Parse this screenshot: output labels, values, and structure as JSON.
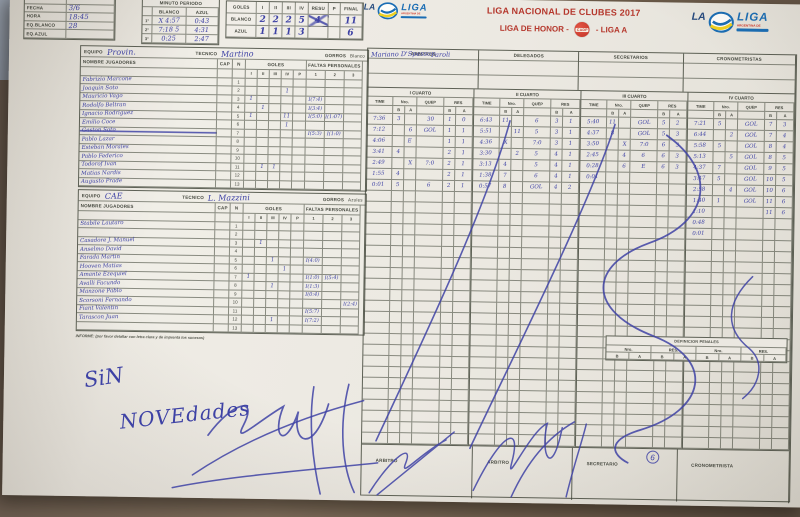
{
  "colors": {
    "title_red": "#b5372c",
    "ink_blue": "#3e42a5",
    "logo_blue": "#1a6db4",
    "logo_yellow": "#eed020",
    "paper": "#ebe8e1"
  },
  "logo": {
    "la": "LA",
    "liga": "LIGA",
    "tagline": "ARGENTINA DE"
  },
  "title": {
    "line1": "LIGA NACIONAL DE CLUBES 2017",
    "line2_left": "LIGA DE HONOR -",
    "line2_right": "- LIGA A",
    "badge": "CADP"
  },
  "info_table": {
    "rows": [
      {
        "label": "",
        "value": ""
      },
      {
        "label": "FECHA",
        "value": "3/6"
      },
      {
        "label": "HORA",
        "value": "18:45"
      },
      {
        "label": "EQ.BLANCO",
        "value": "28"
      },
      {
        "label": "EQ.AZUL",
        "value": ""
      }
    ]
  },
  "minuto_periodo": {
    "title": "MINUTO PERIODO",
    "col_blanco": "BLANCO",
    "col_azul": "AZUL",
    "rows": [
      {
        "n": "1°",
        "blanco": "X 4:57",
        "azul": "0:43"
      },
      {
        "n": "2°",
        "blanco": "7:18 5",
        "azul": "4:31"
      },
      {
        "n": "3°",
        "blanco": "0:25",
        "azul": "2:47"
      }
    ]
  },
  "goles_resumen": {
    "title": "GOLES",
    "cols": [
      "I",
      "II",
      "III",
      "IV",
      "RESU",
      "P",
      "FINAL"
    ],
    "rows": [
      {
        "label": "BLANCO",
        "vals": [
          "2",
          "2",
          "2",
          "5",
          "4",
          "",
          "11"
        ],
        "strike_col": 4
      },
      {
        "label": "AZUL",
        "vals": [
          "1",
          "1",
          "1",
          "3",
          "",
          "",
          "6"
        ],
        "strike_col": -1
      }
    ]
  },
  "team_labels": {
    "equipo": "EQUIPO",
    "tecnico": "TECNICO",
    "gorros": "GORROS",
    "nombre": "NOMBRE JUGADORES",
    "cap": "CAP",
    "n": "N",
    "goles": "GOLES",
    "goles_cols": [
      "I",
      "II",
      "III",
      "IV",
      "P"
    ],
    "faltas": "FALTAS PERSONALES",
    "faltas_cols": [
      "1",
      "2",
      "3"
    ]
  },
  "teams": [
    {
      "equipo": "Provin.",
      "tecnico": "Martino",
      "gorros": "Blanco",
      "players": [
        {
          "n": "1",
          "name": "Fabrizio Marcone",
          "goles": [
            "",
            "",
            "",
            "",
            ""
          ],
          "faltas": [
            "",
            "",
            ""
          ],
          "struck": false
        },
        {
          "n": "2",
          "name": "Joaquin Soto",
          "goles": [
            "",
            "",
            "",
            "1",
            ""
          ],
          "faltas": [
            "",
            "",
            ""
          ],
          "struck": false
        },
        {
          "n": "3",
          "name": "Mauricio Vago",
          "goles": [
            "1",
            "",
            "",
            "",
            ""
          ],
          "faltas": [
            "I(7:4)",
            "",
            ""
          ],
          "struck": false
        },
        {
          "n": "4",
          "name": "Rodolfo Beltran",
          "goles": [
            "",
            "1",
            "",
            "",
            ""
          ],
          "faltas": [
            "I(3:4)",
            "",
            ""
          ],
          "struck": false
        },
        {
          "n": "5",
          "name": "Ignacio Rodriguez",
          "goles": [
            "1",
            "",
            "",
            "11",
            ""
          ],
          "faltas": [
            "I(5:0)",
            "I(1:07)",
            ""
          ],
          "struck": false
        },
        {
          "n": "6",
          "name": "Emilio Coce",
          "goles": [
            "",
            "",
            "",
            "1",
            ""
          ],
          "faltas": [
            "",
            "",
            ""
          ],
          "struck": false
        },
        {
          "n": "7",
          "name": "Gaston Soto",
          "goles": [
            "",
            "",
            "",
            "",
            ""
          ],
          "faltas": [
            "I(5:3)",
            "I(1:0)",
            ""
          ],
          "struck": true
        },
        {
          "n": "8",
          "name": "Pablo Lazar",
          "goles": [
            "",
            "",
            "",
            "",
            ""
          ],
          "faltas": [
            "",
            "",
            ""
          ],
          "struck": false
        },
        {
          "n": "9",
          "name": "Esteban Morales",
          "goles": [
            "",
            "",
            "",
            "",
            ""
          ],
          "faltas": [
            "",
            "",
            ""
          ],
          "struck": false
        },
        {
          "n": "10",
          "name": "Pablo Federico",
          "goles": [
            "",
            "",
            "",
            "",
            ""
          ],
          "faltas": [
            "",
            "",
            ""
          ],
          "struck": false
        },
        {
          "n": "11",
          "name": "Todorof Ivan",
          "goles": [
            "",
            "1",
            "1",
            "",
            ""
          ],
          "faltas": [
            "",
            "",
            ""
          ],
          "struck": false
        },
        {
          "n": "12",
          "name": "Matias Nardis",
          "goles": [
            "",
            "",
            "",
            "",
            ""
          ],
          "faltas": [
            "",
            "",
            ""
          ],
          "struck": false
        },
        {
          "n": "13",
          "name": "Augusto Prade",
          "goles": [
            "",
            "",
            "",
            "",
            ""
          ],
          "faltas": [
            "",
            "",
            ""
          ],
          "struck": false
        }
      ]
    },
    {
      "equipo": "CAE",
      "tecnico": "L. Mazzini",
      "gorros": "Azules",
      "players": [
        {
          "n": "1",
          "name": "Stabile Lautaro",
          "goles": [
            "",
            "",
            "",
            "",
            ""
          ],
          "faltas": [
            "",
            "",
            ""
          ],
          "struck": false
        },
        {
          "n": "2",
          "name": "",
          "goles": [
            "",
            "",
            "",
            "",
            ""
          ],
          "faltas": [
            "",
            "",
            ""
          ],
          "struck": false
        },
        {
          "n": "3",
          "name": "Casadore J. Manuel",
          "goles": [
            "",
            "1",
            "",
            "",
            ""
          ],
          "faltas": [
            "",
            "",
            ""
          ],
          "struck": false
        },
        {
          "n": "4",
          "name": "Anselmo David",
          "goles": [
            "",
            "",
            "",
            "",
            ""
          ],
          "faltas": [
            "",
            "",
            ""
          ],
          "struck": false
        },
        {
          "n": "5",
          "name": "Farada Martin",
          "goles": [
            "",
            "",
            "1",
            "",
            ""
          ],
          "faltas": [
            "I(4:0)",
            "",
            ""
          ],
          "struck": false
        },
        {
          "n": "6",
          "name": "Hooven Matias",
          "goles": [
            "",
            "",
            "",
            "1",
            ""
          ],
          "faltas": [
            "",
            "",
            ""
          ],
          "struck": false
        },
        {
          "n": "7",
          "name": "Amante Ezequiel",
          "goles": [
            "1",
            "",
            "",
            "",
            ""
          ],
          "faltas": [
            "I(1:0)",
            "I(5:4)",
            ""
          ],
          "struck": false
        },
        {
          "n": "8",
          "name": "Avalli Facundo",
          "goles": [
            "",
            "",
            "1",
            "",
            ""
          ],
          "faltas": [
            "I(1:3)",
            "",
            ""
          ],
          "struck": false
        },
        {
          "n": "9",
          "name": "Manzone Pablo",
          "goles": [
            "",
            "",
            "",
            "",
            ""
          ],
          "faltas": [
            "I(0:4)",
            "",
            ""
          ],
          "struck": false
        },
        {
          "n": "10",
          "name": "Scorsoni Fernando",
          "goles": [
            "",
            "",
            "",
            "",
            ""
          ],
          "faltas": [
            "",
            "",
            "I(2:4)"
          ],
          "struck": false
        },
        {
          "n": "11",
          "name": "Fiant Valentin",
          "goles": [
            "",
            "",
            "",
            "",
            ""
          ],
          "faltas": [
            "I(5:7)",
            "",
            ""
          ],
          "struck": false
        },
        {
          "n": "12",
          "name": "Tarascon Juan",
          "goles": [
            "",
            "",
            "1",
            "",
            ""
          ],
          "faltas": [
            "I(7:2)",
            "",
            ""
          ],
          "struck": false
        },
        {
          "n": "13",
          "name": "",
          "goles": [
            "",
            "",
            "",
            "",
            ""
          ],
          "faltas": [
            "",
            "",
            ""
          ],
          "struck": false
        }
      ]
    }
  ],
  "informe_line": "INFORME: (por favor detallar con letra clara y de imprenta los sucesos)",
  "officials": {
    "cols": [
      {
        "label": "ARBITROS",
        "lines": [
          "Mariano D'Spesso",
          "Paroli"
        ]
      },
      {
        "label": "DELEGADOS",
        "lines": []
      },
      {
        "label": "SECRETARIOS",
        "lines": []
      },
      {
        "label": "CRONOMETRISTAS",
        "lines": []
      }
    ]
  },
  "quarters": {
    "titles": [
      "I CUARTO",
      "II CUARTO",
      "III CUARTO",
      "IV CUARTO"
    ],
    "col_time": "TIME",
    "col_nro": "Nro.",
    "col_quep": "QUEP",
    "col_res": "RES",
    "sub_b": "B",
    "sub_a": "A",
    "entries": [
      [
        [
          "7:36",
          "3",
          "",
          "30",
          "1",
          "0"
        ],
        [
          "7:12",
          "",
          "6",
          "GOL",
          "1",
          "1"
        ],
        [
          "4:06",
          "",
          "E",
          "",
          "1",
          "1"
        ],
        [
          "3:41",
          "4",
          "",
          "",
          "2",
          "1"
        ],
        [
          "2:49",
          "",
          "X",
          "7:0",
          "2",
          "1"
        ],
        [
          "1:55",
          "4",
          "",
          "",
          "2",
          "1"
        ],
        [
          "0:01",
          "5",
          "",
          "6",
          "2",
          "1"
        ]
      ],
      [
        [
          "6:43",
          "11",
          "",
          "6",
          "3",
          "1"
        ],
        [
          "5:51",
          "",
          "11",
          "5",
          "3",
          "1"
        ],
        [
          "4:36",
          "X",
          "",
          "7:0",
          "3",
          "1"
        ],
        [
          "3:30",
          "",
          "2",
          "5",
          "4",
          "1"
        ],
        [
          "3:13",
          "4",
          "",
          "5",
          "4",
          "1"
        ],
        [
          "1:38",
          "7",
          "",
          "6",
          "4",
          "1"
        ],
        [
          "0:57",
          "8",
          "",
          "GOL",
          "4",
          "2"
        ]
      ],
      [
        [
          "5:40",
          "11",
          "",
          "GOL",
          "5",
          "2"
        ],
        [
          "4:37",
          "8",
          "",
          "GOL",
          "5",
          "3"
        ],
        [
          "3:50",
          "",
          "X",
          "7:0",
          "6",
          "3"
        ],
        [
          "2:45",
          "",
          "4",
          "6",
          "6",
          "3"
        ],
        [
          "0:28",
          "",
          "6",
          "E",
          "6",
          "3"
        ],
        [
          "0:01",
          "",
          "",
          "",
          "",
          ""
        ]
      ],
      [
        [
          "7:21",
          "5",
          "",
          "GOL",
          "7",
          "3"
        ],
        [
          "6:44",
          "",
          "2",
          "GOL",
          "7",
          "4"
        ],
        [
          "5:58",
          "5",
          "",
          "GOL",
          "8",
          "4"
        ],
        [
          "5:13",
          "",
          "5",
          "GOL",
          "8",
          "5"
        ],
        [
          "4:37",
          "7",
          "",
          "GOL",
          "9",
          "5"
        ],
        [
          "3:47",
          "5",
          "",
          "GOL",
          "10",
          "5"
        ],
        [
          "2:58",
          "",
          "4",
          "GOL",
          "10",
          "6"
        ],
        [
          "1:40",
          "1",
          "",
          "GOL",
          "11",
          "6"
        ],
        [
          "1:10",
          "",
          "",
          "",
          "11",
          "6"
        ],
        [
          "0:48",
          "",
          "",
          "",
          "",
          ""
        ],
        [
          "0:01",
          "",
          "",
          "",
          "",
          ""
        ]
      ]
    ]
  },
  "penales": {
    "title": "DEFINICION PENALES",
    "cols": [
      "Nro.",
      "RES.",
      "Nro.",
      "RES."
    ],
    "sub_b": "B",
    "sub_a": "A"
  },
  "notes": {
    "line1": "SiN",
    "line2": "NOVEdades"
  },
  "signature_strip": {
    "labels": [
      "ARBITRO",
      "ARBITRO",
      "SECRETARIO",
      "CRONOMETRISTA"
    ],
    "secretario_mark": "6"
  }
}
